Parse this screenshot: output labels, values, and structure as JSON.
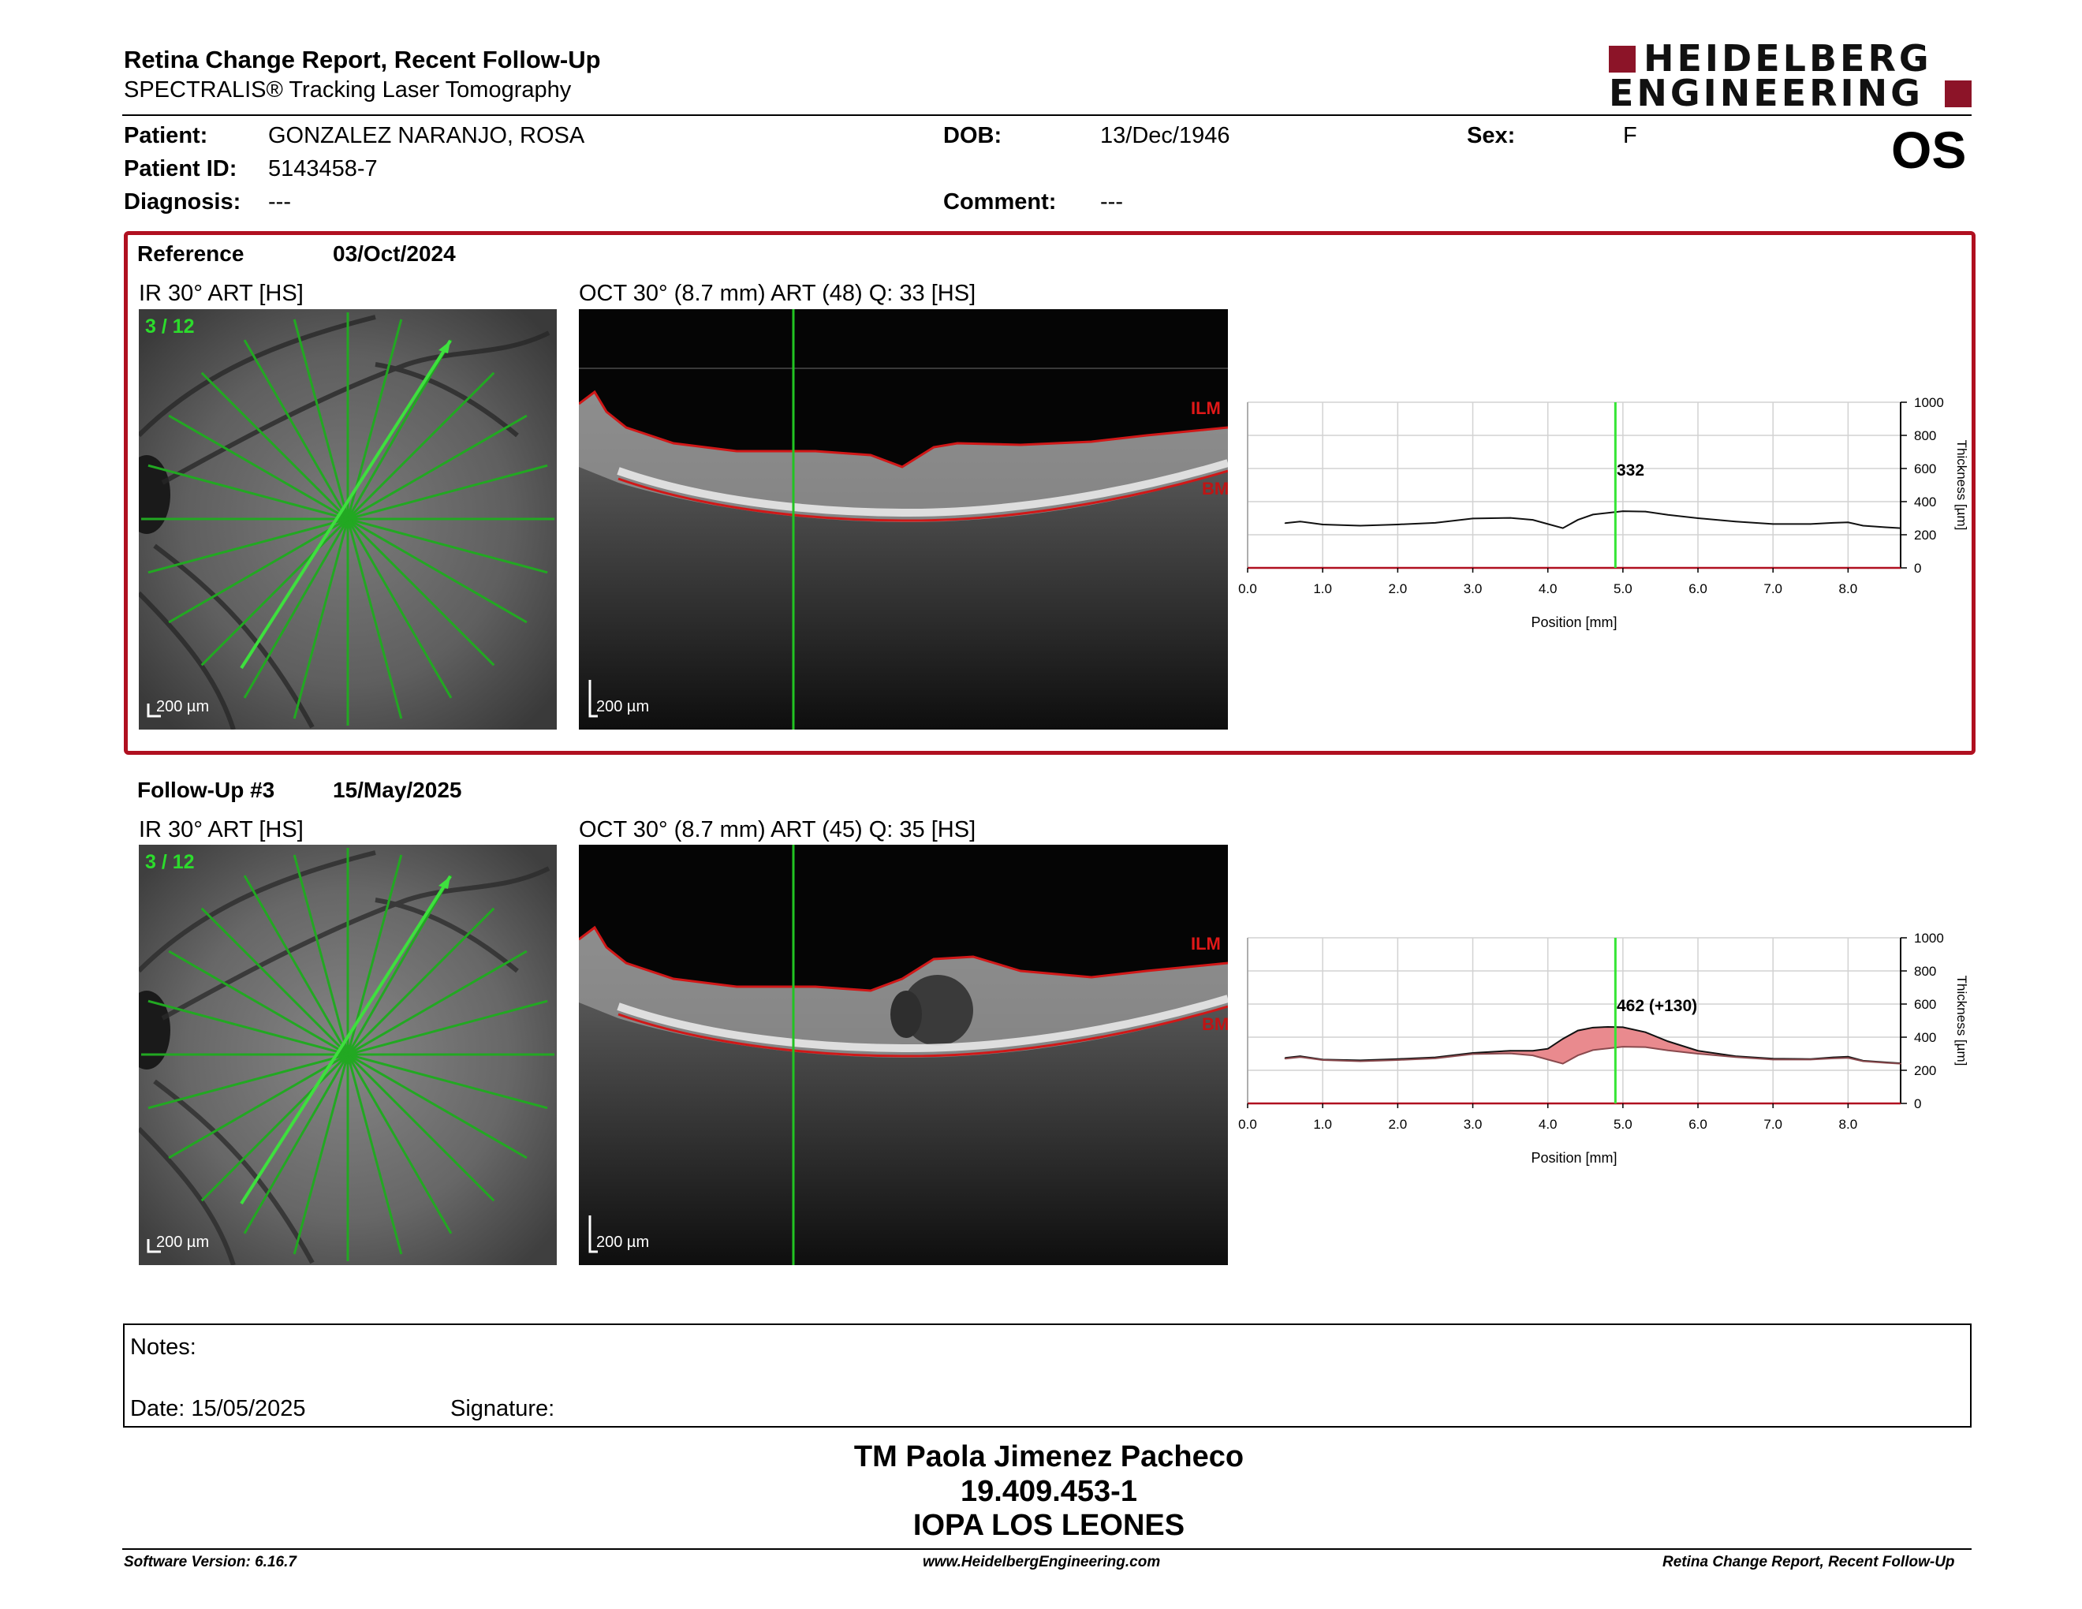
{
  "header": {
    "title": "Retina Change Report, Recent Follow-Up",
    "subtitle": "SPECTRALIS® Tracking Laser Tomography",
    "logo_line1": "HEIDELBERG",
    "logo_line2": "ENGINEERING",
    "eye": "OS"
  },
  "patient": {
    "patient_label": "Patient:",
    "patient_value": "GONZALEZ NARANJO, ROSA",
    "dob_label": "DOB:",
    "dob_value": "13/Dec/1946",
    "sex_label": "Sex:",
    "sex_value": "F",
    "id_label": "Patient ID:",
    "id_value": "5143458-7",
    "diagnosis_label": "Diagnosis:",
    "diagnosis_value": "---",
    "comment_label": "Comment:",
    "comment_value": "---"
  },
  "reference": {
    "label": "Reference",
    "date": "03/Oct/2024",
    "ir_title": "IR 30° ART [HS]",
    "oct_title": "OCT 30° (8.7 mm) ART (48) Q: 33 [HS]",
    "scan_index": "3 / 12",
    "scale": "200 µm",
    "ilm": "ILM",
    "bm": "BM",
    "value_label": "332"
  },
  "followup": {
    "label": "Follow-Up #3",
    "date": "15/May/2025",
    "ir_title": "IR 30° ART [HS]",
    "oct_title": "OCT 30° (8.7 mm) ART (45) Q: 35 [HS]",
    "scan_index": "3 / 12",
    "scale": "200 µm",
    "ilm": "ILM",
    "bm": "BM",
    "value_label": "462 (+130)"
  },
  "chart_data": [
    {
      "type": "line",
      "xlabel": "Position [mm]",
      "ylabel": "Thickness [µm]",
      "xlim": [
        0.0,
        8.7
      ],
      "ylim": [
        0,
        1000
      ],
      "xticks": [
        "0.0",
        "1.0",
        "2.0",
        "3.0",
        "4.0",
        "5.0",
        "6.0",
        "7.0",
        "8.0"
      ],
      "yticks": [
        "0",
        "200",
        "400",
        "600",
        "800",
        "1000"
      ],
      "cursor_x": 4.9,
      "grid": true,
      "series": [
        {
          "x": [
            0.5,
            0.7,
            1.0,
            1.5,
            2.0,
            2.5,
            3.0,
            3.5,
            3.8,
            4.0,
            4.2,
            4.4,
            4.6,
            4.8,
            5.0,
            5.3,
            5.6,
            6.0,
            6.5,
            7.0,
            7.5,
            7.8,
            8.0,
            8.2,
            8.5,
            8.7
          ],
          "y": [
            270,
            280,
            262,
            255,
            262,
            272,
            298,
            302,
            290,
            265,
            240,
            290,
            322,
            332,
            342,
            340,
            320,
            300,
            280,
            265,
            265,
            272,
            275,
            255,
            245,
            240
          ]
        }
      ]
    },
    {
      "type": "area",
      "xlabel": "Position [mm]",
      "ylabel": "Thickness [µm]",
      "xlim": [
        0.0,
        8.7
      ],
      "ylim": [
        0,
        1000
      ],
      "xticks": [
        "0.0",
        "1.0",
        "2.0",
        "3.0",
        "4.0",
        "5.0",
        "6.0",
        "7.0",
        "8.0"
      ],
      "yticks": [
        "0",
        "200",
        "400",
        "600",
        "800",
        "1000"
      ],
      "cursor_x": 4.9,
      "grid": true,
      "series": [
        {
          "x": [
            0.5,
            0.7,
            1.0,
            1.5,
            2.0,
            2.5,
            3.0,
            3.5,
            3.8,
            4.0,
            4.2,
            4.4,
            4.6,
            4.8,
            5.0,
            5.3,
            5.6,
            6.0,
            6.5,
            7.0,
            7.5,
            7.8,
            8.0,
            8.2,
            8.5,
            8.7
          ],
          "y": [
            275,
            285,
            265,
            260,
            268,
            278,
            305,
            318,
            318,
            330,
            390,
            440,
            458,
            462,
            460,
            430,
            375,
            318,
            285,
            270,
            268,
            278,
            282,
            258,
            248,
            242
          ]
        },
        {
          "x": [
            0.5,
            0.7,
            1.0,
            1.5,
            2.0,
            2.5,
            3.0,
            3.5,
            3.8,
            4.0,
            4.2,
            4.4,
            4.6,
            4.8,
            5.0,
            5.3,
            5.6,
            6.0,
            6.5,
            7.0,
            7.5,
            7.8,
            8.0,
            8.2,
            8.5,
            8.7
          ],
          "y": [
            270,
            280,
            262,
            255,
            262,
            272,
            298,
            302,
            290,
            265,
            240,
            290,
            322,
            332,
            342,
            340,
            320,
            300,
            280,
            265,
            265,
            272,
            275,
            255,
            245,
            240
          ]
        }
      ]
    }
  ],
  "notes": {
    "notes_label": "Notes:",
    "date_text": "Date: 15/05/2025",
    "signature_label": "Signature:"
  },
  "signature": {
    "name": "TM Paola Jimenez Pacheco",
    "rut": "19.409.453-1",
    "institution": "IOPA LOS LEONES"
  },
  "footer": {
    "software": "Software Version: 6.16.7",
    "website": "www.HeidelbergEngineering.com",
    "report": "Retina Change Report, Recent Follow-Up"
  },
  "colors": {
    "accent_red": "#b01020",
    "scan_green": "#22c422",
    "highlight_green": "#35e535",
    "diff_fill": "#e98a8e"
  }
}
